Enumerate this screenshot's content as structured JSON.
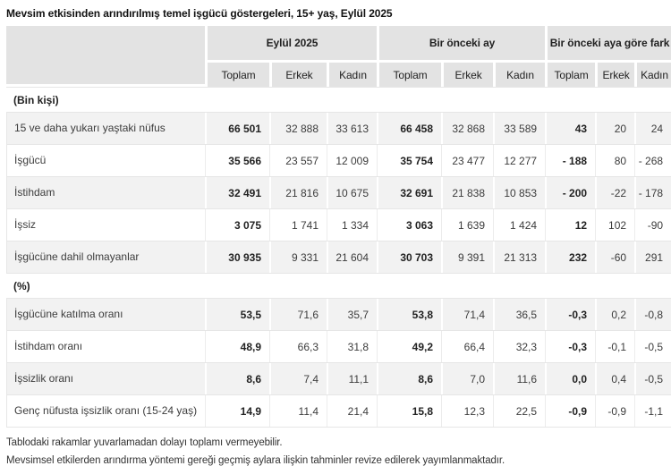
{
  "title": "Mevsim etkisinden arındırılmış temel işgücü göstergeleri, 15+ yaş, Eylül 2025",
  "table": {
    "column_groups": [
      {
        "label": "Eylül 2025"
      },
      {
        "label": "Bir önceki ay"
      },
      {
        "label": "Bir önceki aya göre fark"
      }
    ],
    "sub_headers": [
      "Toplam",
      "Erkek",
      "Kadın"
    ],
    "sections": [
      {
        "heading": "(Bin kişi)",
        "rows": [
          {
            "label": "15 ve daha yukarı yaştaki nüfus",
            "values": [
              "66 501",
              "32 888",
              "33 613",
              "66 458",
              "32 868",
              "33 589",
              "43",
              "20",
              "24"
            ]
          },
          {
            "label": "İşgücü",
            "values": [
              "35 566",
              "23 557",
              "12 009",
              "35 754",
              "23 477",
              "12 277",
              "- 188",
              "80",
              "- 268"
            ]
          },
          {
            "label": "İstihdam",
            "values": [
              "32 491",
              "21 816",
              "10 675",
              "32 691",
              "21 838",
              "10 853",
              "- 200",
              "-22",
              "- 178"
            ]
          },
          {
            "label": "İşsiz",
            "values": [
              "3 075",
              "1 741",
              "1 334",
              "3 063",
              "1 639",
              "1 424",
              "12",
              "102",
              "-90"
            ]
          },
          {
            "label": "İşgücüne dahil olmayanlar",
            "values": [
              "30 935",
              "9 331",
              "21 604",
              "30 703",
              "9 391",
              "21 313",
              "232",
              "-60",
              "291"
            ]
          }
        ]
      },
      {
        "heading": "(%)",
        "rows": [
          {
            "label": "İşgücüne katılma oranı",
            "values": [
              "53,5",
              "71,6",
              "35,7",
              "53,8",
              "71,4",
              "36,5",
              "-0,3",
              "0,2",
              "-0,8"
            ]
          },
          {
            "label": "İstihdam oranı",
            "values": [
              "48,9",
              "66,3",
              "31,8",
              "49,2",
              "66,4",
              "32,3",
              "-0,3",
              "-0,1",
              "-0,5"
            ]
          },
          {
            "label": "İşsizlik oranı",
            "values": [
              "8,6",
              "7,4",
              "11,1",
              "8,6",
              "7,0",
              "11,6",
              "0,0",
              "0,4",
              "-0,5"
            ]
          },
          {
            "label": "Genç nüfusta işsizlik oranı\n(15-24 yaş)",
            "values": [
              "14,9",
              "11,4",
              "21,4",
              "15,8",
              "12,3",
              "22,5",
              "-0,9",
              "-0,9",
              "-1,1"
            ]
          }
        ]
      }
    ]
  },
  "footnotes": [
    "Tablodaki rakamlar yuvarlamadan dolayı toplamı vermeyebilir.",
    "Mevsimsel etkilerden arındırma yöntemi gereği geçmiş aylara ilişkin tahminler revize edilerek yayımlanmaktadır."
  ],
  "colors": {
    "header_bg": "#e3e3e3",
    "stripe_bg": "#f2f2f2",
    "border": "#e6e6e6",
    "text": "#3c3c3c"
  }
}
